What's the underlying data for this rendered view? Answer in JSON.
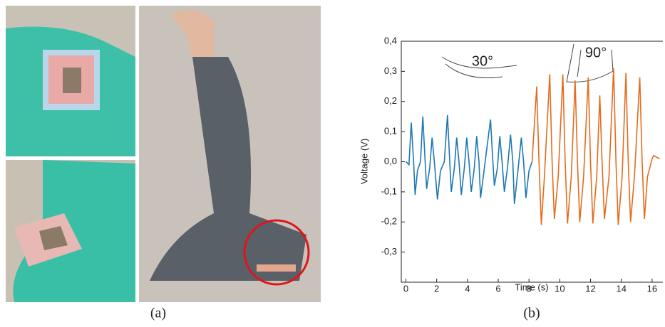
{
  "captions": [
    "(a)",
    "(b)"
  ],
  "chart_data": {
    "type": "line",
    "x_label": "Time (s)",
    "y_label": "Voltage (V)",
    "annotations": [
      "30°",
      "90°"
    ],
    "xlim": [
      -0.3,
      16.7
    ],
    "ylim": [
      -0.4,
      0.4
    ],
    "xticks": [
      0,
      2,
      4,
      6,
      8,
      10,
      12,
      14,
      16
    ],
    "yticks": [
      {
        "value": -0.3,
        "label": "-0,3"
      },
      {
        "value": -0.2,
        "label": "-0,2"
      },
      {
        "value": -0.1,
        "label": "-0,1"
      },
      {
        "value": 0,
        "label": "0,0"
      },
      {
        "value": 0.1,
        "label": "0,1"
      },
      {
        "value": 0.2,
        "label": "0,2"
      },
      {
        "value": 0.3,
        "label": "0,3"
      },
      {
        "value": 0.4,
        "label": "0,4"
      }
    ],
    "series": [
      {
        "color": "#1f77b4",
        "x": [
          0,
          0.2,
          0.35,
          0.5,
          0.6,
          0.75,
          0.95,
          1.1,
          1.25,
          1.35,
          1.55,
          1.7,
          1.85,
          2.05,
          2.25,
          2.5,
          2.7,
          2.85,
          2.95,
          3.15,
          3.3,
          3.45,
          3.6,
          3.8,
          3.95,
          4.1,
          4.25,
          4.45,
          4.6,
          4.75,
          4.85,
          5.1,
          5.5,
          5.65,
          5.75,
          5.95,
          6.1,
          6.25,
          6.4,
          6.6,
          6.8,
          6.95,
          7.05,
          7.3,
          7.5,
          7.65,
          7.8,
          8.0,
          8.2
        ],
        "values": [
          0,
          -0.01,
          0.13,
          0,
          -0.11,
          -0.03,
          0,
          0.15,
          0,
          -0.09,
          -0.02,
          0.08,
          0,
          -0.125,
          -0.03,
          0,
          0.155,
          0,
          -0.1,
          -0.02,
          0.08,
          0,
          -0.11,
          -0.02,
          0.08,
          0,
          -0.1,
          -0.02,
          0.085,
          0,
          -0.12,
          -0.02,
          0.14,
          0,
          -0.08,
          -0.02,
          0.085,
          0,
          -0.1,
          -0.02,
          0.09,
          0,
          -0.14,
          -0.02,
          0.08,
          0,
          -0.12,
          -0.03,
          0
        ]
      },
      {
        "color": "#e46c1f",
        "x": [
          8.2,
          8.5,
          8.65,
          8.8,
          9.0,
          9.35,
          9.5,
          9.65,
          9.9,
          10.2,
          10.35,
          10.5,
          10.75,
          11.0,
          11.15,
          11.3,
          11.55,
          11.85,
          12.0,
          12.15,
          12.4,
          12.6,
          12.75,
          12.9,
          13.2,
          13.5,
          13.65,
          13.8,
          14.05,
          14.3,
          14.45,
          14.6,
          14.85,
          15.2,
          15.35,
          15.5,
          15.7,
          16.0,
          16.1,
          16.5
        ],
        "values": [
          0,
          0.25,
          0,
          -0.21,
          -0.05,
          0.29,
          0,
          -0.19,
          -0.05,
          0.29,
          0,
          -0.205,
          -0.05,
          0.27,
          0,
          -0.2,
          -0.05,
          0.28,
          0,
          -0.205,
          -0.05,
          0.22,
          0,
          -0.19,
          -0.05,
          0.31,
          0,
          -0.21,
          -0.05,
          0.295,
          0,
          -0.2,
          -0.05,
          0.28,
          0,
          -0.19,
          -0.05,
          0.01,
          0.02,
          0.01
        ]
      }
    ]
  }
}
